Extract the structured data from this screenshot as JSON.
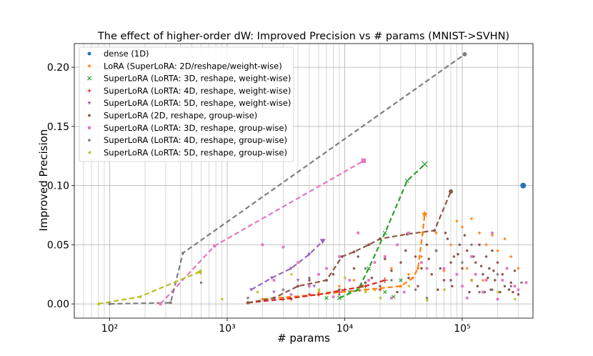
{
  "chart_data": {
    "type": "scatter",
    "title": "The effect of higher-order dW: Improved Precision vs # params (MNIST->SVHN)",
    "xlabel": "# params",
    "ylabel": "Improved Precision",
    "xscale": "log",
    "xlim": [
      50,
      400000
    ],
    "ylim": [
      -0.012,
      0.22
    ],
    "grid": true,
    "legend_position": "top-left",
    "x_ticks": [
      {
        "value": 100,
        "label": "10²"
      },
      {
        "value": 1000,
        "label": "10³"
      },
      {
        "value": 10000,
        "label": "10⁴"
      },
      {
        "value": 100000,
        "label": "10⁵"
      }
    ],
    "y_ticks": [
      {
        "value": 0.0,
        "label": "0.00"
      },
      {
        "value": 0.05,
        "label": "0.05"
      },
      {
        "value": 0.1,
        "label": "0.10"
      },
      {
        "value": 0.15,
        "label": "0.15"
      },
      {
        "value": 0.2,
        "label": "0.20"
      }
    ],
    "series": [
      {
        "name": "dense (1D)",
        "label": "dense (1D)",
        "color": "#1f77b4",
        "marker": "circle",
        "scatter": [],
        "best": [
          [
            330000,
            0.1
          ]
        ]
      },
      {
        "name": "LoRA",
        "label": "LoRA (SuperLoRA: 2D/reshape/weight-wise)",
        "color": "#ff7f0e",
        "marker": "star",
        "scatter": [
          [
            6000,
            0.01
          ],
          [
            9000,
            0.015
          ],
          [
            12000,
            0.02
          ],
          [
            18000,
            0.012
          ],
          [
            25000,
            0.03
          ],
          [
            35000,
            0.025
          ],
          [
            45000,
            0.04
          ],
          [
            60000,
            0.06
          ],
          [
            80000,
            0.05
          ],
          [
            90000,
            0.07
          ],
          [
            100000,
            0.065
          ],
          [
            120000,
            0.072
          ],
          [
            140000,
            0.06
          ],
          [
            160000,
            0.05
          ],
          [
            180000,
            0.058
          ],
          [
            200000,
            0.045
          ],
          [
            230000,
            0.055
          ],
          [
            260000,
            0.04
          ],
          [
            300000,
            0.03
          ],
          [
            150000,
            0.02
          ],
          [
            110000,
            0.03
          ],
          [
            70000,
            0.028
          ]
        ],
        "best": [
          [
            2000,
            0.004
          ],
          [
            6000,
            0.008
          ],
          [
            15000,
            0.012
          ],
          [
            30000,
            0.015
          ],
          [
            38000,
            0.022
          ],
          [
            42000,
            0.03
          ],
          [
            46000,
            0.06
          ],
          [
            48000,
            0.076
          ]
        ]
      },
      {
        "name": "SuperLoRA 3D weight-wise",
        "label": "SuperLoRA (LoRTA: 3D, reshape, weight-wise)",
        "color": "#2ca02c",
        "marker": "x",
        "scatter": [
          [
            7000,
            0.005
          ],
          [
            11000,
            0.01
          ],
          [
            14000,
            0.015
          ],
          [
            22000,
            0.01
          ],
          [
            30000,
            0.02
          ],
          [
            26000,
            0.006
          ]
        ],
        "best": [
          [
            9000,
            0.005
          ],
          [
            13000,
            0.012
          ],
          [
            16000,
            0.03
          ],
          [
            22000,
            0.06
          ],
          [
            34000,
            0.104
          ],
          [
            48000,
            0.118
          ]
        ]
      },
      {
        "name": "SuperLoRA 4D weight-wise",
        "label": "SuperLoRA (LoRTA: 4D, reshape, weight-wise)",
        "color": "#d62728",
        "marker": "plus",
        "scatter": [
          [
            3500,
            0.004
          ],
          [
            5000,
            0.008
          ],
          [
            9000,
            0.01
          ],
          [
            14000,
            0.015
          ],
          [
            20000,
            0.012
          ]
        ],
        "best": [
          [
            1500,
            0.001
          ],
          [
            3000,
            0.004
          ],
          [
            6000,
            0.008
          ],
          [
            10000,
            0.012
          ],
          [
            15000,
            0.015
          ],
          [
            22000,
            0.02
          ]
        ]
      },
      {
        "name": "SuperLoRA 5D weight-wise",
        "label": "SuperLoRA (LoRTA: 5D, reshape, weight-wise)",
        "color": "#9467bd",
        "marker": "tri_down",
        "scatter": [
          [
            2500,
            0.01
          ],
          [
            4000,
            0.02
          ],
          [
            5500,
            0.015
          ]
        ],
        "best": [
          [
            1600,
            0.012
          ],
          [
            2400,
            0.022
          ],
          [
            3500,
            0.03
          ],
          [
            5000,
            0.042
          ],
          [
            6500,
            0.053
          ]
        ]
      },
      {
        "name": "SuperLoRA 2D group-wise",
        "label": "SuperLoRA (2D, reshape, group-wise)",
        "color": "#8c564b",
        "marker": "dot",
        "scatter": [
          [
            5000,
            0.02
          ],
          [
            8000,
            0.025
          ],
          [
            12000,
            0.03
          ],
          [
            15000,
            0.018
          ],
          [
            20000,
            0.015
          ],
          [
            25000,
            0.028
          ],
          [
            30000,
            0.035
          ],
          [
            35000,
            0.022
          ],
          [
            40000,
            0.04
          ],
          [
            45000,
            0.03
          ],
          [
            50000,
            0.05
          ],
          [
            55000,
            0.025
          ],
          [
            60000,
            0.045
          ],
          [
            65000,
            0.03
          ],
          [
            70000,
            0.02
          ],
          [
            75000,
            0.055
          ],
          [
            80000,
            0.035
          ],
          [
            85000,
            0.04
          ],
          [
            90000,
            0.025
          ],
          [
            95000,
            0.05
          ],
          [
            100000,
            0.03
          ],
          [
            110000,
            0.045
          ],
          [
            120000,
            0.02
          ],
          [
            130000,
            0.035
          ],
          [
            140000,
            0.05
          ],
          [
            150000,
            0.025
          ],
          [
            160000,
            0.04
          ],
          [
            170000,
            0.03
          ],
          [
            180000,
            0.045
          ],
          [
            190000,
            0.02
          ],
          [
            200000,
            0.035
          ],
          [
            220000,
            0.025
          ],
          [
            240000,
            0.03
          ],
          [
            260000,
            0.018
          ],
          [
            280000,
            0.028
          ],
          [
            9000,
            0.012
          ],
          [
            13000,
            0.04
          ],
          [
            17000,
            0.022
          ],
          [
            22000,
            0.038
          ],
          [
            28000,
            0.01
          ],
          [
            33000,
            0.045
          ],
          [
            42000,
            0.015
          ],
          [
            52000,
            0.038
          ],
          [
            62000,
            0.012
          ],
          [
            72000,
            0.06
          ],
          [
            82000,
            0.015
          ],
          [
            92000,
            0.042
          ],
          [
            105000,
            0.058
          ],
          [
            115000,
            0.01
          ],
          [
            125000,
            0.04
          ],
          [
            135000,
            0.015
          ],
          [
            145000,
            0.032
          ],
          [
            155000,
            0.01
          ],
          [
            165000,
            0.022
          ],
          [
            175000,
            0.012
          ],
          [
            185000,
            0.028
          ],
          [
            210000,
            0.01
          ],
          [
            230000,
            0.015
          ],
          [
            250000,
            0.012
          ],
          [
            270000,
            0.01
          ],
          [
            300000,
            0.008
          ]
        ],
        "best": [
          [
            1500,
            0.001
          ],
          [
            2500,
            0.005
          ],
          [
            4000,
            0.015
          ],
          [
            7000,
            0.02
          ],
          [
            9500,
            0.04
          ],
          [
            12000,
            0.044
          ],
          [
            16000,
            0.05
          ],
          [
            20000,
            0.055
          ],
          [
            34000,
            0.059
          ],
          [
            58000,
            0.062
          ],
          [
            80000,
            0.095
          ]
        ]
      },
      {
        "name": "SuperLoRA 3D group-wise",
        "label": "SuperLoRA (LoRTA: 3D, reshape, group-wise)",
        "color": "#e377c2",
        "marker": "square",
        "scatter": [
          [
            2000,
            0.05
          ],
          [
            3000,
            0.048
          ],
          [
            4000,
            0.035
          ],
          [
            6000,
            0.025
          ],
          [
            9000,
            0.04
          ],
          [
            13000,
            0.06
          ],
          [
            18000,
            0.035
          ],
          [
            22000,
            0.04
          ],
          [
            28000,
            0.05
          ],
          [
            35000,
            0.06
          ],
          [
            45000,
            0.035
          ],
          [
            60000,
            0.045
          ],
          [
            80000,
            0.02
          ],
          [
            100000,
            0.015
          ],
          [
            120000,
            0.04
          ],
          [
            150000,
            0.01
          ],
          [
            180000,
            0.06
          ],
          [
            220000,
            0.02
          ],
          [
            280000,
            0.015
          ],
          [
            350000,
            0.018
          ],
          [
            2500,
            0.02
          ],
          [
            5000,
            0.015
          ],
          [
            7000,
            0.03
          ],
          [
            11000,
            0.02
          ],
          [
            16000,
            0.02
          ],
          [
            25000,
            0.005
          ],
          [
            32000,
            0.01
          ],
          [
            50000,
            0.03
          ],
          [
            70000,
            0.03
          ],
          [
            90000,
            0.025
          ],
          [
            110000,
            0.005
          ],
          [
            130000,
            0.025
          ],
          [
            160000,
            0.02
          ],
          [
            200000,
            0.004
          ],
          [
            240000,
            0.03
          ],
          [
            300000,
            0.012
          ],
          [
            3500,
            0.008
          ],
          [
            8000,
            0.006
          ]
        ],
        "best": [
          [
            270,
            0.0
          ],
          [
            780,
            0.049
          ],
          [
            14500,
            0.121
          ]
        ]
      },
      {
        "name": "SuperLoRA 4D group-wise",
        "label": "SuperLoRA (LoRTA: 4D, reshape, group-wise)",
        "color": "#7f7f7f",
        "marker": "dot",
        "scatter": [
          [
            600,
            0.018
          ],
          [
            1500,
            0.005
          ],
          [
            3000,
            0.012
          ],
          [
            5000,
            0.022
          ],
          [
            9000,
            0.008
          ],
          [
            15000,
            0.03
          ],
          [
            25000,
            0.02
          ],
          [
            40000,
            0.012
          ],
          [
            60000,
            0.045
          ],
          [
            80000,
            0.02
          ],
          [
            100000,
            0.035
          ],
          [
            140000,
            0.01
          ],
          [
            200000,
            0.025
          ],
          [
            260000,
            0.015
          ],
          [
            320000,
            0.018
          ],
          [
            50000,
            0.005
          ],
          [
            120000,
            0.05
          ],
          [
            180000,
            0.012
          ]
        ],
        "best": [
          [
            100,
            0.0
          ],
          [
            330,
            0.001
          ],
          [
            420,
            0.043
          ],
          [
            105000,
            0.211
          ]
        ]
      },
      {
        "name": "SuperLoRA 5D group-wise",
        "label": "SuperLoRA (LoRTA: 5D, reshape, group-wise)",
        "color": "#bcbd22",
        "marker": "tri_left",
        "scatter": [
          [
            900,
            0.004
          ],
          [
            1800,
            0.01
          ],
          [
            3500,
            0.025
          ],
          [
            6000,
            0.012
          ],
          [
            10000,
            0.022
          ],
          [
            20000,
            0.005
          ],
          [
            35000,
            0.015
          ],
          [
            70000,
            0.012
          ],
          [
            120000,
            0.02
          ],
          [
            200000,
            0.01
          ],
          [
            280000,
            0.004
          ],
          [
            15000,
            0.01
          ],
          [
            50000,
            0.003
          ]
        ],
        "best": [
          [
            80,
            0.0
          ],
          [
            180,
            0.006
          ],
          [
            580,
            0.027
          ]
        ]
      }
    ]
  }
}
